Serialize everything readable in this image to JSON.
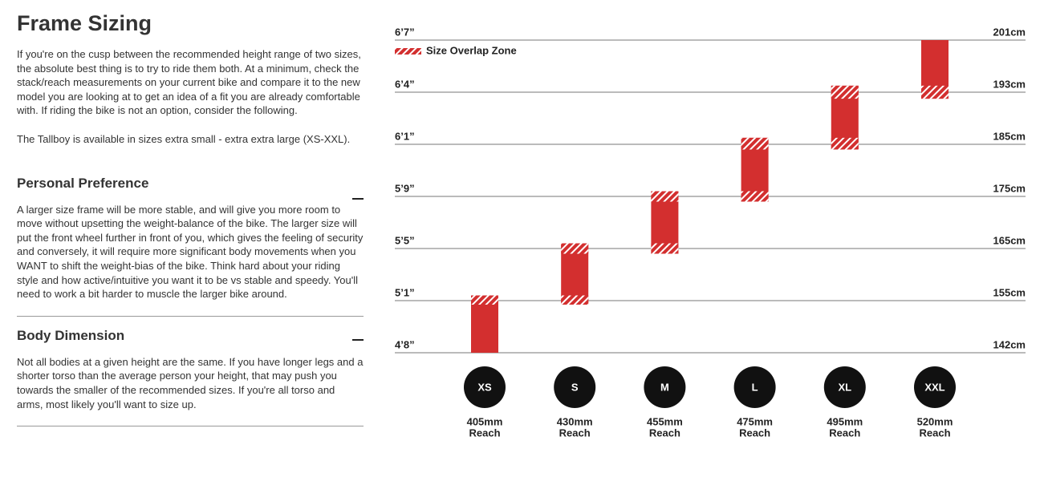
{
  "header": {
    "title": "Frame Sizing"
  },
  "intro": [
    "If you're on the cusp between the recommended height range of two sizes, the absolute best thing is to try to ride them both. At a minimum, check the stack/reach measurements on your current bike and compare it to the new model you are looking at to get an idea of a fit you are already comfortable with. If riding the bike is not an option, consider the following.",
    "The Tallboy is available in sizes extra small - extra extra large (XS-XXL)."
  ],
  "sections": [
    {
      "title": "Personal Preference",
      "body": "A larger size frame will be more stable, and will give you more room to move without upsetting the weight-balance of the bike. The larger size will put the front wheel further in front of you, which gives the feeling of security and conversely, it will require more significant body movements when you WANT to shift the weight-bias of the bike. Think hard about your riding style and how active/intuitive you want it to be vs stable and speedy. You'll need to work a bit harder to muscle the larger bike around."
    },
    {
      "title": "Body Dimension",
      "body": "Not all bodies at a given height are the same. If you have longer legs and a shorter torso than the average person your height, that may push you towards the smaller of the recommended sizes. If you're all torso and arms, most likely you'll want to size up."
    }
  ],
  "size_chart": {
    "legend": "Size Overlap Zone",
    "color": "#d32f2f",
    "rows": [
      {
        "ft": "6’7”",
        "cm": {
          "value": 201,
          "label": "201cm"
        }
      },
      {
        "ft": "6’4”",
        "cm": {
          "value": 193,
          "label": "193cm"
        }
      },
      {
        "ft": "6’1”",
        "cm": {
          "value": 185,
          "label": "185cm"
        }
      },
      {
        "ft": "5’9”",
        "cm": {
          "value": 175,
          "label": "175cm"
        }
      },
      {
        "ft": "5’5”",
        "cm": {
          "value": 165,
          "label": "165cm"
        }
      },
      {
        "ft": "5’1”",
        "cm": {
          "value": 155,
          "label": "155cm"
        }
      },
      {
        "ft": "4’8”",
        "cm": {
          "value": 142,
          "label": "142cm"
        }
      }
    ],
    "reach_label": "Reach",
    "sizes": [
      {
        "name": "XS",
        "min": 142,
        "max": 156,
        "reach": "405mm"
      },
      {
        "name": "S",
        "min": 154,
        "max": 166,
        "reach": "430mm"
      },
      {
        "name": "M",
        "min": 164,
        "max": 176,
        "reach": "455mm"
      },
      {
        "name": "L",
        "min": 174,
        "max": 186,
        "reach": "475mm"
      },
      {
        "name": "XL",
        "min": 184,
        "max": 194,
        "reach": "495mm"
      },
      {
        "name": "XXL",
        "min": 192,
        "max": 201,
        "reach": "520mm"
      }
    ]
  }
}
